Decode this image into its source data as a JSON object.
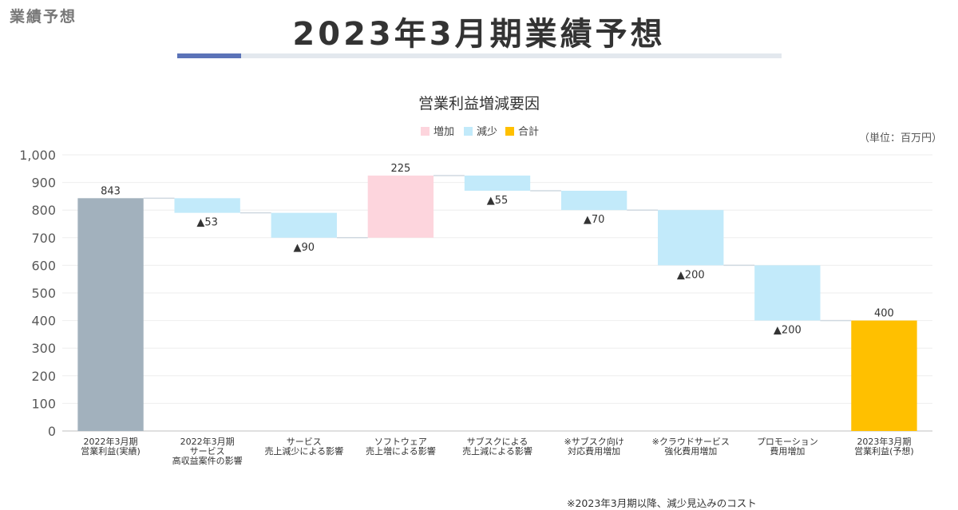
{
  "header": {
    "section_label": "業績予想",
    "title": "2023年3月期業績予想"
  },
  "chart_data": {
    "type": "waterfall",
    "title": "営業利益増減要因",
    "unit_label": "（単位：百万円）",
    "legend": [
      {
        "name": "増加",
        "color": "#fdd5dd"
      },
      {
        "name": "減少",
        "color": "#c2eafa"
      },
      {
        "name": "合計",
        "color": "#ffc000"
      }
    ],
    "legend_position": "top-center",
    "ylim": [
      0,
      1000
    ],
    "yticks": [
      "0",
      "100",
      "200",
      "300",
      "400",
      "500",
      "600",
      "700",
      "800",
      "900",
      "1,000"
    ],
    "grid": true,
    "steps": [
      {
        "category": [
          "2022年3月期",
          "営業利益(実績)"
        ],
        "kind": "total",
        "value": 843,
        "label": "843",
        "color": "#a2b1bd"
      },
      {
        "category": [
          "2022年3月期",
          "サービス",
          "高収益案件の影響"
        ],
        "kind": "decrease",
        "value": -53,
        "label": "▲53"
      },
      {
        "category": [
          "サービス",
          "売上減少による影響"
        ],
        "kind": "decrease",
        "value": -90,
        "label": "▲90"
      },
      {
        "category": [
          "ソフトウェア",
          "売上増による影響"
        ],
        "kind": "increase",
        "value": 225,
        "label": "225"
      },
      {
        "category": [
          "サブスクによる",
          "売上減による影響"
        ],
        "kind": "decrease",
        "value": -55,
        "label": "▲55"
      },
      {
        "category": [
          "※サブスク向け",
          "対応費用増加"
        ],
        "kind": "decrease",
        "value": -70,
        "label": "▲70"
      },
      {
        "category": [
          "※クラウドサービス",
          "強化費用増加"
        ],
        "kind": "decrease",
        "value": -200,
        "label": "▲200"
      },
      {
        "category": [
          "プロモーション",
          "費用増加"
        ],
        "kind": "decrease",
        "value": -200,
        "label": "▲200"
      },
      {
        "category": [
          "2023年3月期",
          "営業利益(予想)"
        ],
        "kind": "total",
        "value": 400,
        "label": "400",
        "color": "#ffc000"
      }
    ]
  },
  "footnote": "※2023年3月期以降、減少見込みのコスト"
}
